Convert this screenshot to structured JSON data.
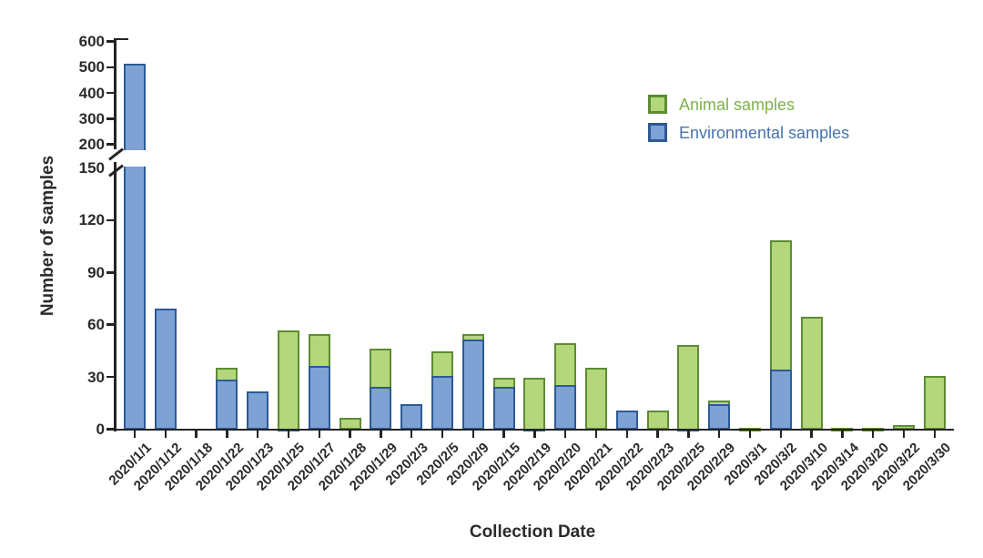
{
  "figure_title": "",
  "legend": {
    "items": [
      {
        "label": "Animal samples",
        "text_color": "#7cb24c",
        "fill": "#b4d77c",
        "border": "#5d8c33"
      },
      {
        "label": "Environmental samples",
        "text_color": "#4a72ad",
        "fill": "#7ea2d4",
        "border": "#2d5a96"
      }
    ]
  },
  "chart_data": {
    "type": "bar",
    "stacked": true,
    "title": "",
    "xlabel": "Collection Date",
    "ylabel": "Number of samples",
    "grid": false,
    "legend_position": "upper-right",
    "axis_color": "#232323",
    "y_axis": {
      "break": true,
      "lower_range": [
        0,
        150
      ],
      "upper_range": [
        200,
        600
      ],
      "lower_ticks": [
        0,
        30,
        60,
        90,
        120,
        150
      ],
      "upper_ticks": [
        200,
        300,
        400,
        500,
        600
      ]
    },
    "categories": [
      "2020/1/1",
      "2020/1/12",
      "2020/1/18",
      "2020/1/22",
      "2020/1/23",
      "2020/1/25",
      "2020/1/27",
      "2020/1/28",
      "2020/1/29",
      "2020/2/3",
      "2020/2/5",
      "2020/2/9",
      "2020/2/15",
      "2020/2/19",
      "2020/2/20",
      "2020/2/21",
      "2020/2/22",
      "2020/2/23",
      "2020/2/25",
      "2020/2/29",
      "2020/3/1",
      "2020/3/2",
      "2020/3/10",
      "2020/3/14",
      "2020/3/20",
      "2020/3/22",
      "2020/3/30"
    ],
    "series": [
      {
        "name": "Environmental samples",
        "color": "#7ea2d4",
        "border_color": "#2d5a96",
        "values": [
          515,
          70,
          0,
          29,
          22,
          1,
          37,
          0,
          25,
          15,
          31,
          52,
          25,
          1,
          26,
          0,
          11,
          0,
          1,
          15,
          0,
          35,
          0,
          0,
          0,
          0,
          0
        ]
      },
      {
        "name": "Animal samples",
        "color": "#b4d77c",
        "border_color": "#5d8c33",
        "values": [
          0,
          0,
          0,
          7,
          0,
          56,
          18,
          7,
          22,
          0,
          14,
          3,
          5,
          29,
          24,
          36,
          0,
          11,
          48,
          2,
          1,
          74,
          65,
          1,
          1,
          3,
          31
        ]
      }
    ]
  }
}
